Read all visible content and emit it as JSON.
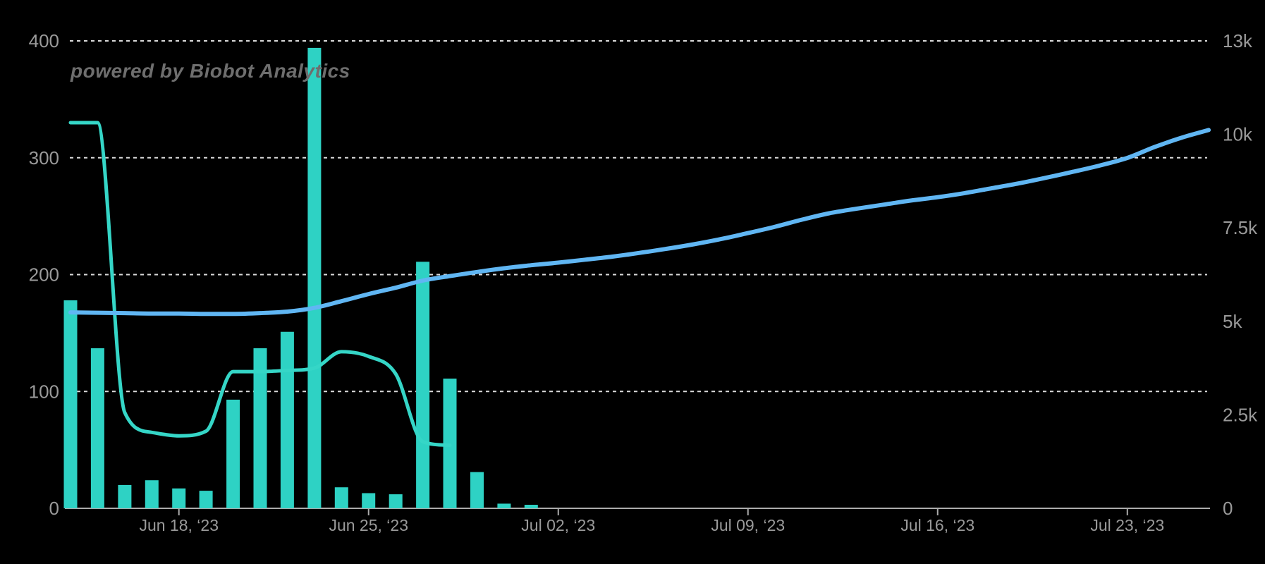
{
  "watermark": "powered by Biobot Analytics",
  "colors": {
    "background": "#000000",
    "bar": "#2ed2c4",
    "teal_line": "#35d6c7",
    "blue_line": "#60b6f3",
    "gridline": "#dadada",
    "axis_line": "#ababab",
    "axis_label": "#9a9a9a",
    "watermark": "#6e6e6e"
  },
  "chart_data": {
    "type": "composite",
    "background": "#000000",
    "grid": "dotted horizontal gridlines at left-axis ticks",
    "legend": "none",
    "x_categories": [
      "Jun 14",
      "Jun 15",
      "Jun 16",
      "Jun 17",
      "Jun 18",
      "Jun 19",
      "Jun 20",
      "Jun 21",
      "Jun 22",
      "Jun 23",
      "Jun 24",
      "Jun 25",
      "Jun 26",
      "Jun 27",
      "Jun 28",
      "Jun 29",
      "Jun 30",
      "Jul 01",
      "Jul 02",
      "Jul 03",
      "Jul 04",
      "Jul 05",
      "Jul 06",
      "Jul 07",
      "Jul 08",
      "Jul 09",
      "Jul 10",
      "Jul 11",
      "Jul 12",
      "Jul 13",
      "Jul 14",
      "Jul 15",
      "Jul 16",
      "Jul 17",
      "Jul 18",
      "Jul 19",
      "Jul 20",
      "Jul 21",
      "Jul 22",
      "Jul 23",
      "Jul 24",
      "Jul 25",
      "Jul 26"
    ],
    "x_axis": {
      "tick_labels": [
        "Jun 18, ‘23",
        "Jun 25, ‘23",
        "Jul 02, ‘23",
        "Jul 09, ‘23",
        "Jul 16, ‘23",
        "Jul 23, ‘23"
      ],
      "tick_day_indices": [
        4,
        11,
        18,
        25,
        32,
        39
      ]
    },
    "left_axis": {
      "tick_labels": [
        "0",
        "100",
        "200",
        "300",
        "400"
      ],
      "tick_values": [
        0,
        100,
        200,
        300,
        400
      ],
      "range": [
        0,
        400
      ]
    },
    "right_axis": {
      "tick_labels": [
        "0",
        "2.5k",
        "5k",
        "7.5k",
        "10k",
        "13k"
      ],
      "tick_values": [
        0,
        2500,
        5000,
        7500,
        10000,
        13000
      ],
      "range": [
        0,
        13000
      ],
      "note": "tick labels are equally spaced vertically"
    },
    "series": [
      {
        "name": "daily-bars",
        "type": "bar",
        "axis": "left",
        "color": "#2ed2c4",
        "start_day_index": 0,
        "values": [
          178,
          137,
          20,
          24,
          17,
          15,
          93,
          137,
          151,
          394,
          18,
          13,
          12,
          211,
          111,
          31,
          4,
          3
        ]
      },
      {
        "name": "teal-line",
        "type": "line",
        "axis": "left",
        "color": "#35d6c7",
        "stroke_width": 5,
        "start_day_index": 0,
        "values": [
          330,
          330,
          82,
          65,
          62,
          66,
          117,
          117,
          118,
          120,
          134,
          130,
          115,
          57,
          54
        ]
      },
      {
        "name": "blue-line",
        "type": "line",
        "axis": "right",
        "color": "#60b6f3",
        "stroke_width": 6,
        "start_day_index": 0,
        "values": [
          5240,
          5230,
          5220,
          5210,
          5210,
          5200,
          5200,
          5220,
          5260,
          5360,
          5540,
          5730,
          5900,
          6090,
          6210,
          6320,
          6420,
          6500,
          6570,
          6650,
          6730,
          6830,
          6940,
          7060,
          7200,
          7360,
          7530,
          7720,
          7890,
          8010,
          8120,
          8230,
          8320,
          8430,
          8560,
          8690,
          8840,
          9000,
          9170,
          9370,
          9660,
          9910,
          10140
        ]
      }
    ]
  }
}
